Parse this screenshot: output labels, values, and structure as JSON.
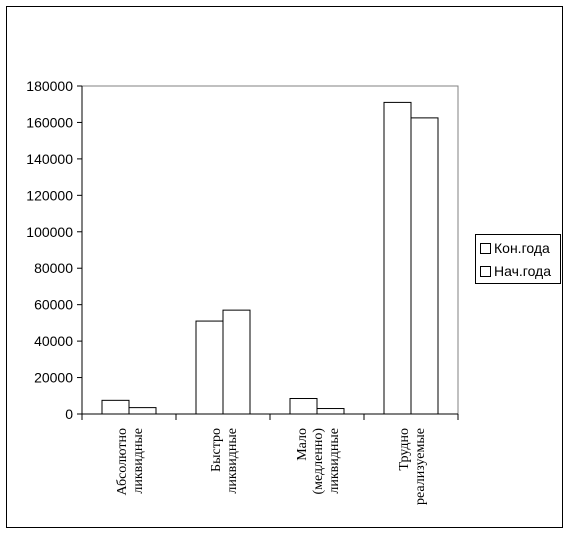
{
  "chart_data": {
    "type": "bar",
    "categories": [
      [
        "Абсолютно",
        "ликвидные"
      ],
      [
        "Быстро",
        "ликвидные"
      ],
      [
        "Мало",
        "(медленно)",
        "ликвидные"
      ],
      [
        "Трудно",
        "реализуемые"
      ]
    ],
    "series": [
      {
        "name": "Кон.года",
        "values": [
          7500,
          51000,
          8500,
          171000
        ],
        "color": "#ffffff"
      },
      {
        "name": "Нач.года",
        "values": [
          3500,
          57000,
          3000,
          162500
        ],
        "color": "#ffffff"
      }
    ],
    "ylim": [
      0,
      180000
    ],
    "yticks": [
      0,
      20000,
      40000,
      60000,
      80000,
      100000,
      120000,
      140000,
      160000,
      180000
    ],
    "ytick_labels": [
      "0",
      "20000",
      "40000",
      "60000",
      "80000",
      "100000",
      "120000",
      "140000",
      "160000",
      "180000"
    ],
    "grid": false,
    "legend_position": "right",
    "colors": {
      "bar_fill": "#ffffff",
      "bar_stroke": "#000000",
      "plot_border": "#808080"
    }
  }
}
